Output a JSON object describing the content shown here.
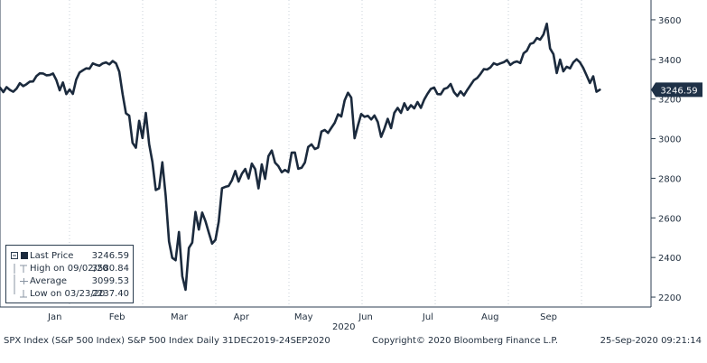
{
  "chart_data": {
    "type": "line",
    "title": "SPX Index (S&P 500 Index) S&P 500 Index",
    "xlabel": "",
    "ylabel": "",
    "ylim": [
      2150,
      3700
    ],
    "yticks": [
      2200,
      2400,
      2600,
      2800,
      3000,
      3200,
      3400,
      3600
    ],
    "month_labels": [
      "Jan",
      "Feb",
      "Mar",
      "Apr",
      "May",
      "Jun",
      "Jul",
      "Aug",
      "Sep"
    ],
    "month_indices": [
      0.3,
      1.15,
      2.0,
      2.85,
      3.7,
      4.55,
      5.4,
      6.25,
      7.05
    ],
    "year_label": "2020",
    "year_index": 4.25,
    "x_range": [
      -0.45,
      8.45
    ],
    "last_value_label": "3246.59",
    "series": [
      {
        "name": "SPX Index",
        "values": [
          3258,
          3235,
          3260,
          3246,
          3237,
          3253,
          3280,
          3265,
          3275,
          3288,
          3289,
          3316,
          3330,
          3329,
          3320,
          3321,
          3329,
          3296,
          3244,
          3284,
          3225,
          3248,
          3226,
          3298,
          3334,
          3345,
          3355,
          3353,
          3380,
          3373,
          3368,
          3380,
          3385,
          3375,
          3392,
          3380,
          3338,
          3225,
          3128,
          3116,
          2979,
          2954,
          3090,
          3003,
          3130,
          2972,
          2882,
          2741,
          2749,
          2881,
          2711,
          2481,
          2398,
          2386,
          2529,
          2305,
          2237,
          2448,
          2475,
          2630,
          2541,
          2627,
          2584,
          2526,
          2470,
          2489,
          2580,
          2750,
          2757,
          2761,
          2790,
          2837,
          2783,
          2823,
          2847,
          2799,
          2874,
          2846,
          2749,
          2870,
          2797,
          2912,
          2940,
          2879,
          2861,
          2830,
          2842,
          2831,
          2929,
          2930,
          2848,
          2853,
          2880,
          2958,
          2971,
          2948,
          2955,
          3036,
          3044,
          3029,
          3055,
          3080,
          3123,
          3112,
          3193,
          3232,
          3207,
          3002,
          3066,
          3124,
          3110,
          3115,
          3097,
          3117,
          3084,
          3009,
          3050,
          3100,
          3053,
          3130,
          3155,
          3130,
          3179,
          3145,
          3169,
          3153,
          3185,
          3155,
          3197,
          3226,
          3251,
          3258,
          3225,
          3224,
          3251,
          3257,
          3276,
          3235,
          3215,
          3239,
          3218,
          3246,
          3271,
          3295,
          3306,
          3327,
          3351,
          3349,
          3360,
          3381,
          3373,
          3380,
          3386,
          3397,
          3372,
          3385,
          3390,
          3382,
          3431,
          3444,
          3478,
          3484,
          3508,
          3500,
          3526,
          3580,
          3455,
          3427,
          3331,
          3399,
          3340,
          3363,
          3355,
          3385,
          3401,
          3385,
          3357,
          3320,
          3281,
          3315,
          3237,
          3247
        ]
      }
    ]
  },
  "legend": {
    "items": [
      {
        "label": "Last Price",
        "value": "3246.59"
      },
      {
        "label": "High on 09/02/20",
        "value": "3580.84"
      },
      {
        "label": "Average",
        "value": "3099.53"
      },
      {
        "label": "Low on 03/23/20",
        "value": "2237.40"
      }
    ]
  },
  "footer": {
    "left": "SPX Index (S&P 500 Index) S&P 500 Index  Daily 31DEC2019-24SEP2020",
    "center": "Copyright© 2020 Bloomberg Finance L.P.",
    "right": "25-Sep-2020 09:21:14"
  },
  "colors": {
    "line": "#1b2a3d",
    "grid": "#c8d0d8",
    "axis": "#2c3e50",
    "label_bg": "#1f3147",
    "label_text": "#ffffff",
    "text": "#1f2d3d"
  }
}
